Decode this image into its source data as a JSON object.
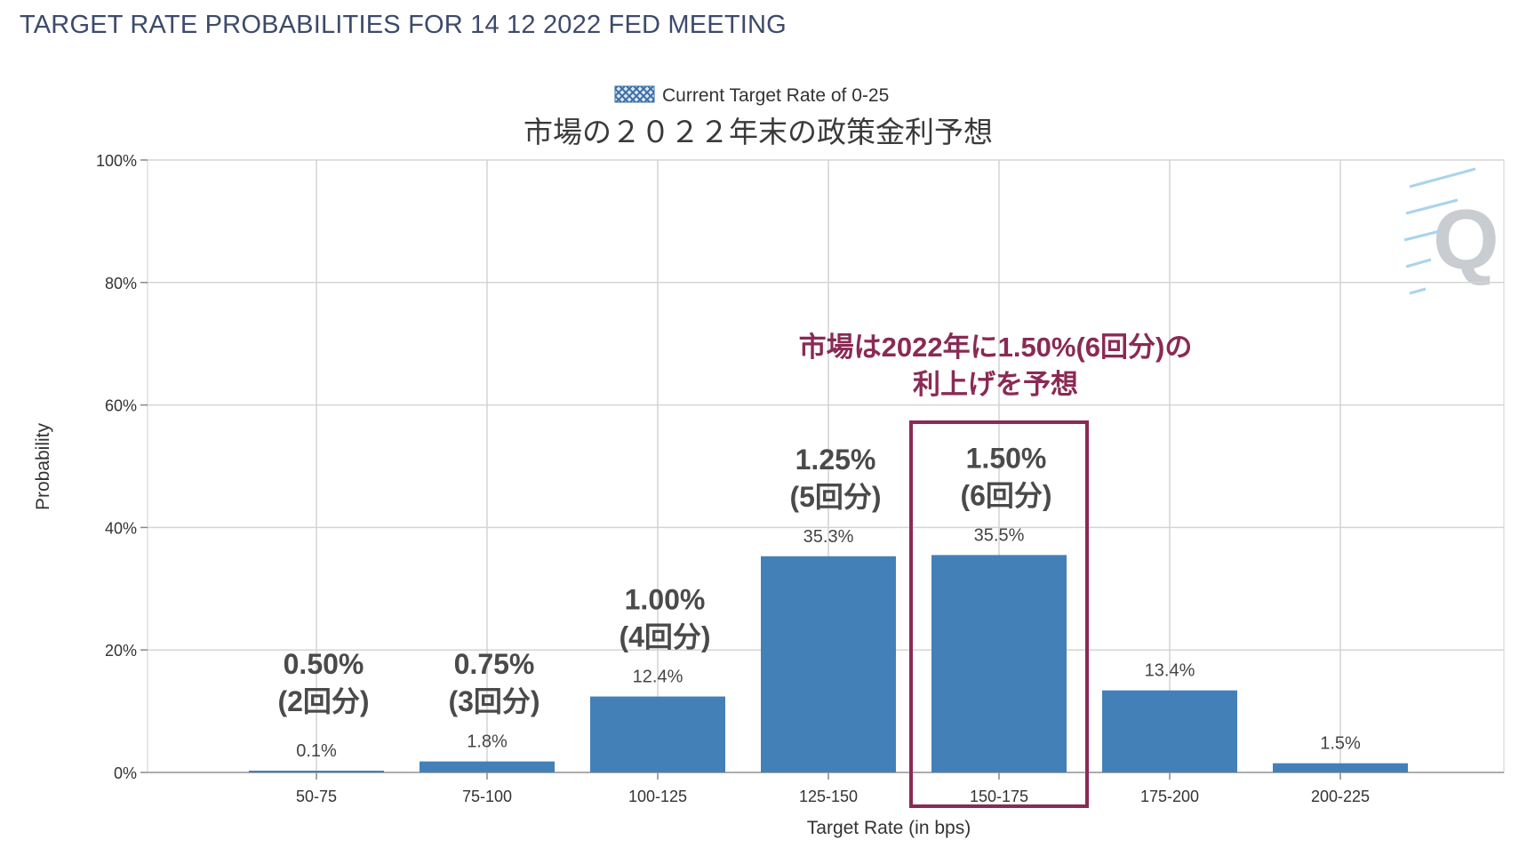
{
  "page": {
    "title": "TARGET RATE PROBABILITIES FOR 14 12 2022 FED MEETING"
  },
  "legend": {
    "label": "Current Target Rate of 0-25"
  },
  "chart_data": {
    "type": "bar",
    "title": "市場の２０２２年末の政策金利予想",
    "xlabel": "Target Rate (in bps)",
    "ylabel": "Probability",
    "ylim": [
      0,
      100
    ],
    "y_ticks": [
      "0%",
      "20%",
      "40%",
      "60%",
      "80%",
      "100%"
    ],
    "grid": true,
    "legend_position": "top-center",
    "bar_color": "#4480b8",
    "categories": [
      "50-75",
      "75-100",
      "100-125",
      "125-150",
      "150-175",
      "175-200",
      "200-225"
    ],
    "values": [
      0.1,
      1.8,
      12.4,
      35.3,
      35.5,
      13.4,
      1.5
    ],
    "value_labels": [
      "0.1%",
      "1.8%",
      "12.4%",
      "35.3%",
      "35.5%",
      "13.4%",
      "1.5%"
    ],
    "annotations": [
      {
        "category": "50-75",
        "lines": [
          "0.50%",
          "(2回分)"
        ]
      },
      {
        "category": "75-100",
        "lines": [
          "0.75%",
          "(3回分)"
        ]
      },
      {
        "category": "100-125",
        "lines": [
          "1.00%",
          "(4回分)"
        ]
      },
      {
        "category": "125-150",
        "lines": [
          "1.25%",
          "(5回分)"
        ]
      },
      {
        "category": "150-175",
        "lines": [
          "1.50%",
          "(6回分)"
        ]
      }
    ],
    "callout": {
      "lines": [
        "市場は2022年に1.50%(6回分)の",
        "利上げを予想"
      ],
      "highlight_category": "150-175",
      "color": "#8a2a55"
    }
  }
}
